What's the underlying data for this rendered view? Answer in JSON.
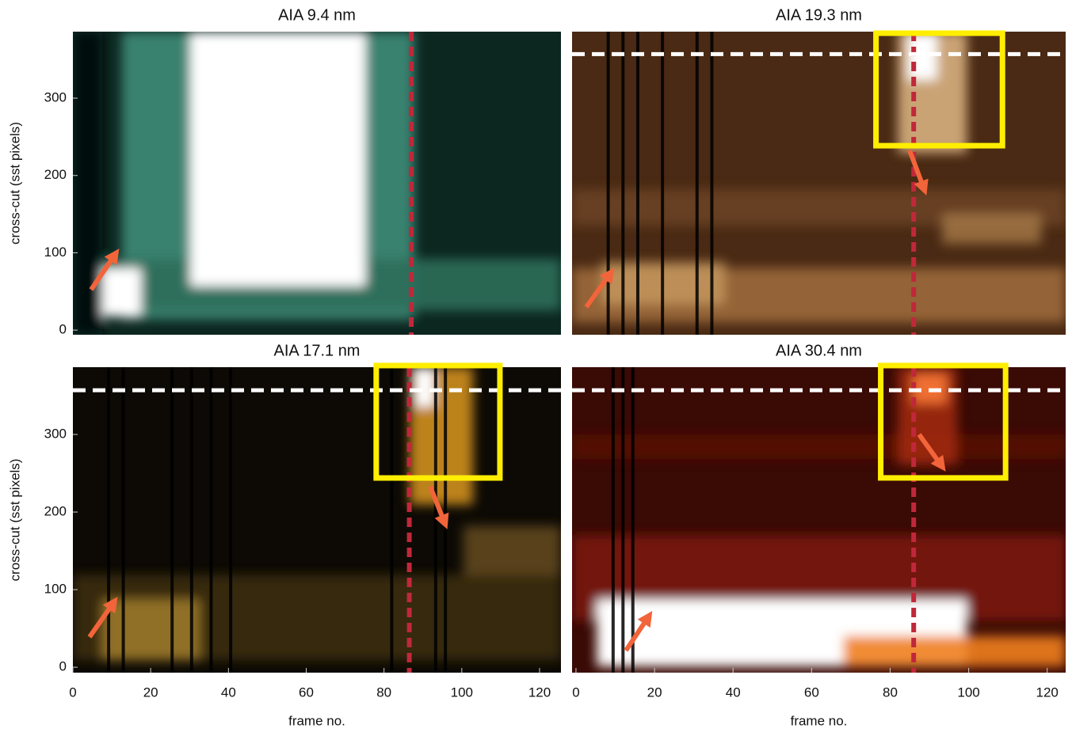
{
  "chart_data": [
    {
      "type": "image",
      "title": "AIA  9.4 nm",
      "ylabel": "cross-cut (sst pixels)",
      "xlim": [
        0,
        125.5
      ],
      "ylim": [
        -6,
        386
      ],
      "yticks": [
        0,
        100,
        200,
        300
      ],
      "vline": 87
    },
    {
      "type": "image",
      "title": "AIA  19.3 nm",
      "xlim": [
        -1,
        124.7
      ],
      "ylim": [
        -6,
        386
      ],
      "vline": 86,
      "hline": 357,
      "box": {
        "x": [
          76.4,
          108.6
        ],
        "y": [
          238.5,
          384
        ]
      }
    },
    {
      "type": "image",
      "title": "AIA  17.1 nm",
      "ylabel": "cross-cut (sst pixels)",
      "xlabel": "frame no.",
      "xlim": [
        0,
        125.5
      ],
      "ylim": [
        -7,
        386.7
      ],
      "xticks": [
        0,
        20,
        40,
        60,
        80,
        100,
        120
      ],
      "yticks": [
        0,
        100,
        200,
        300
      ],
      "vline": 86.5,
      "hline": 357,
      "box": {
        "x": [
          78,
          109.8
        ],
        "y": [
          243.9,
          388.8
        ]
      }
    },
    {
      "type": "image",
      "title": "AIA  30.4 nm",
      "xlabel": "frame no.",
      "xlim": [
        -1,
        124.7
      ],
      "ylim": [
        -7,
        386.7
      ],
      "xticks": [
        0,
        20,
        40,
        60,
        80,
        100,
        120
      ],
      "vline": 86,
      "hline": 357,
      "box": {
        "x": [
          77.6,
          109.4
        ],
        "y": [
          244,
          388.8
        ]
      }
    }
  ]
}
